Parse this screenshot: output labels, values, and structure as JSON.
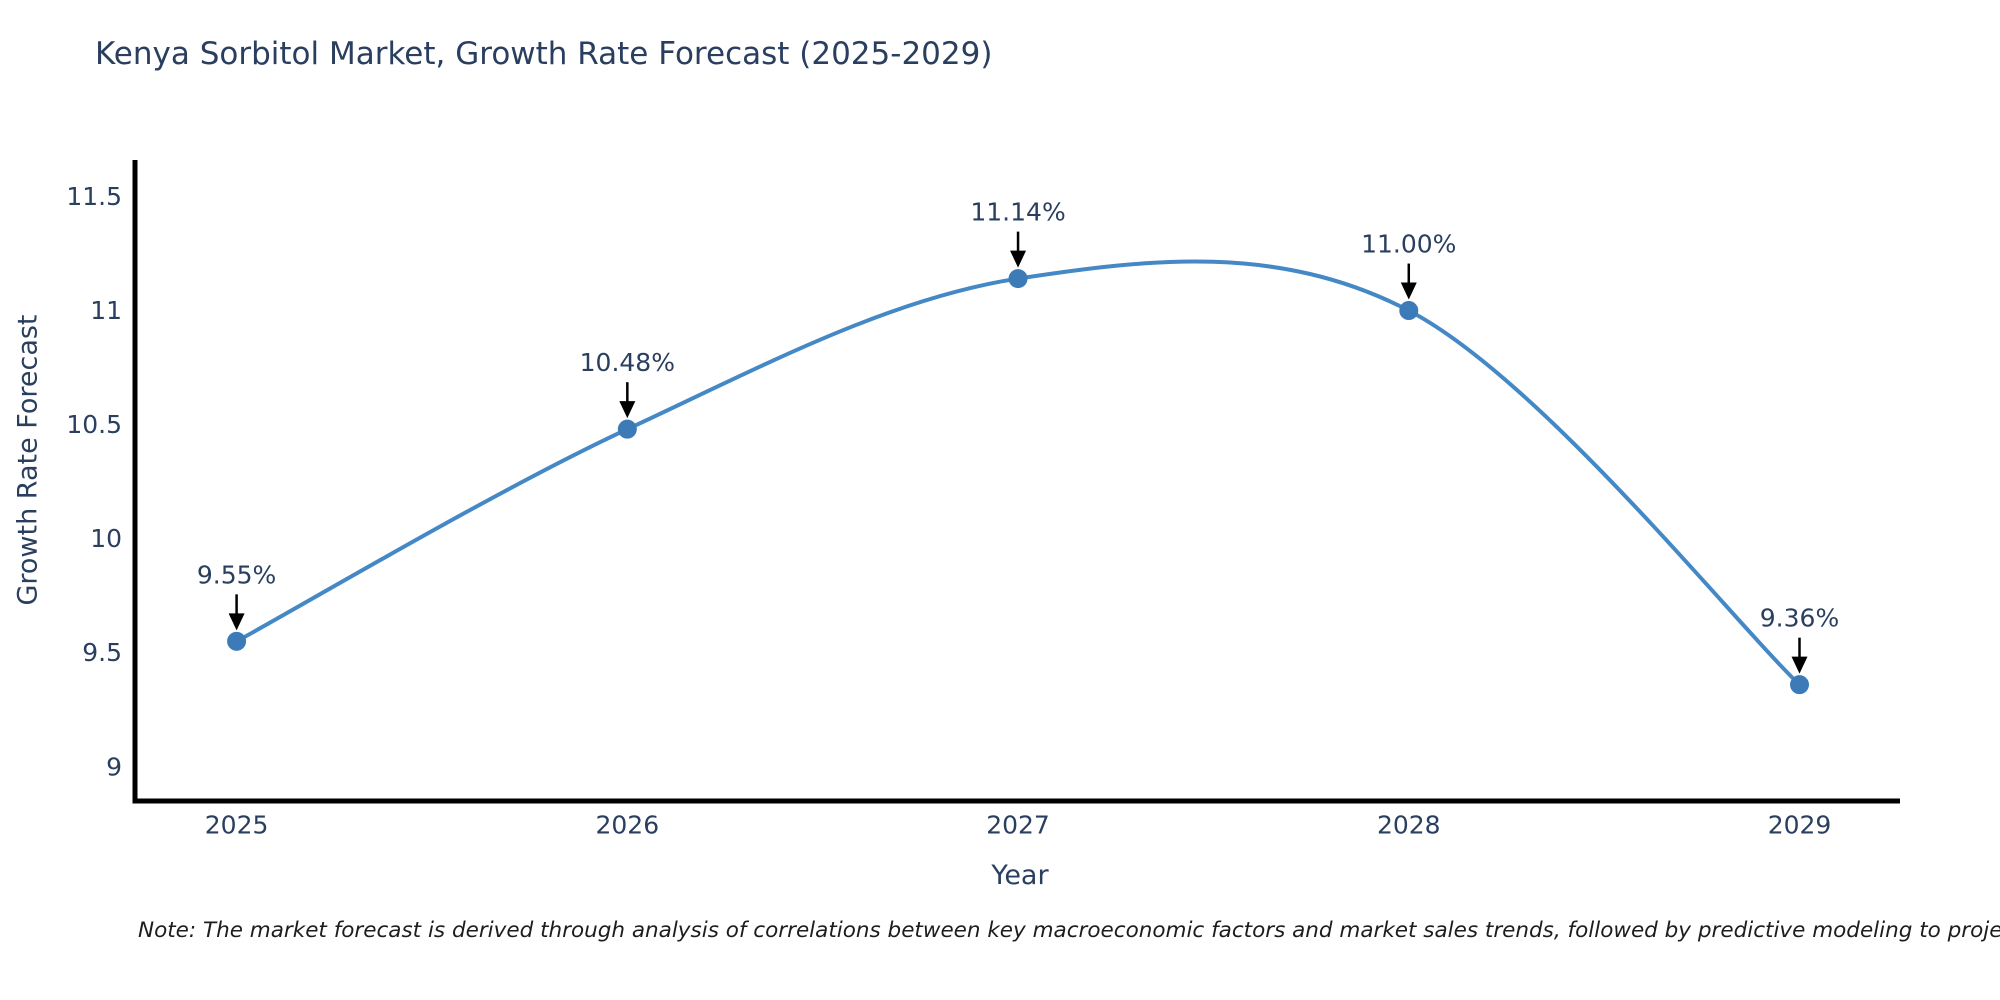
{
  "chart_data": {
    "type": "line",
    "title": "Kenya Sorbitol Market, Growth Rate Forecast (2025-2029)",
    "xlabel": "Year",
    "ylabel": "Growth Rate Forecast",
    "x": [
      2025,
      2026,
      2027,
      2028,
      2029
    ],
    "series": [
      {
        "name": "Growth Rate Forecast",
        "values": [
          9.55,
          10.48,
          11.14,
          11.0,
          9.36
        ],
        "point_labels": [
          "9.55%",
          "10.48%",
          "11.14%",
          "11.00%",
          "9.36%"
        ]
      }
    ],
    "x_tick_labels": [
      "2025",
      "2026",
      "2027",
      "2028",
      "2029"
    ],
    "y_ticks": [
      9,
      9.5,
      10,
      10.5,
      11,
      11.5
    ],
    "y_tick_labels": [
      "9",
      "9.5",
      "10",
      "10.5",
      "11",
      "11.5"
    ],
    "xlim": [
      2024.74,
      2029.27
    ],
    "ylim": [
      8.85,
      11.66
    ],
    "line_shape": "spline",
    "grid": false,
    "legend": "none",
    "colors": {
      "line": "#4488c5",
      "marker": "#3d7ab8",
      "axis": "#000000",
      "text": "#2a3f5f",
      "annotation_arrow": "#000000"
    }
  },
  "note": {
    "text": "Note: The market forecast is derived through analysis of correlations between key macroeconomic factors and market sales trends, followed by predictive modeling to project future sal"
  }
}
